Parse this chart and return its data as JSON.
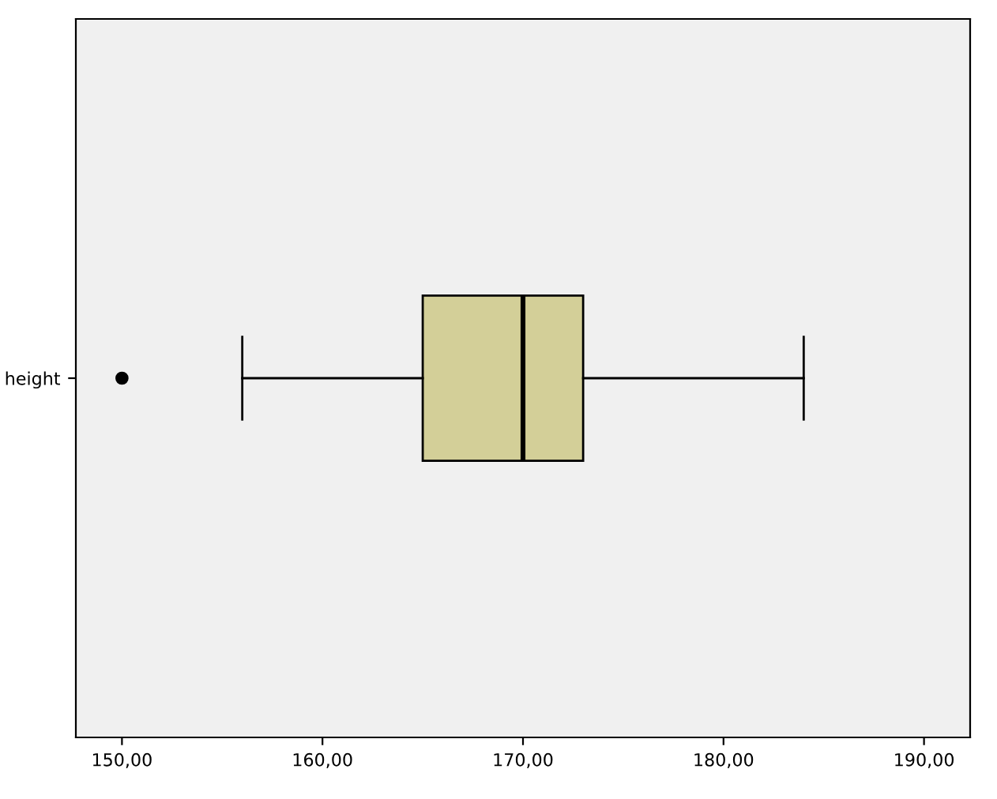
{
  "chart_data": {
    "type": "box",
    "orientation": "horizontal",
    "categories": [
      "height"
    ],
    "boxes": [
      {
        "low": 156,
        "q1": 165,
        "median": 170,
        "q3": 173,
        "high": 184,
        "outliers": [
          150
        ]
      }
    ],
    "color": "#d3cf98",
    "xlim": [
      147.7,
      192.3
    ],
    "xticks": [
      {
        "value": 150,
        "label": "150,00"
      },
      {
        "value": 160,
        "label": "160,00"
      },
      {
        "value": 170,
        "label": "170,00"
      },
      {
        "value": 180,
        "label": "180,00"
      },
      {
        "value": 190,
        "label": "190,00"
      }
    ],
    "grid": false
  }
}
